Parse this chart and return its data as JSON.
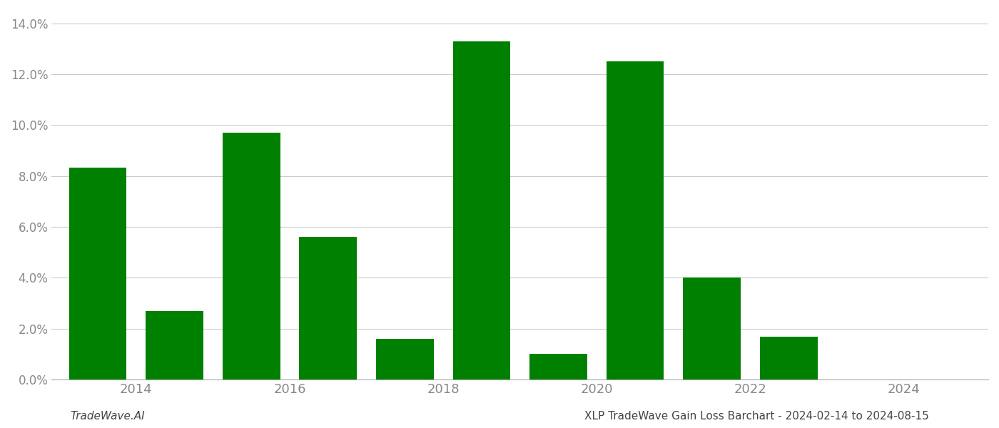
{
  "years": [
    2013,
    2014,
    2015,
    2016,
    2017,
    2018,
    2019,
    2020,
    2021,
    2022,
    2023
  ],
  "values": [
    0.0833,
    0.027,
    0.097,
    0.056,
    0.016,
    0.133,
    0.01,
    0.125,
    0.04,
    0.017,
    0.0
  ],
  "bar_color": "#008000",
  "ylim": [
    0,
    0.145
  ],
  "yticks": [
    0.0,
    0.02,
    0.04,
    0.06,
    0.08,
    0.1,
    0.12,
    0.14
  ],
  "xtick_positions": [
    2013.5,
    2015.5,
    2017.5,
    2019.5,
    2021.5,
    2023.5
  ],
  "xtick_labels": [
    "2014",
    "2016",
    "2018",
    "2020",
    "2022",
    "2024"
  ],
  "xlim": [
    2012.4,
    2024.6
  ],
  "footer_left": "TradeWave.AI",
  "footer_right": "XLP TradeWave Gain Loss Barchart - 2024-02-14 to 2024-08-15",
  "grid_color": "#cccccc",
  "background_color": "#ffffff",
  "bar_width": 0.75,
  "tick_label_color": "#888888",
  "footer_font_size": 11
}
